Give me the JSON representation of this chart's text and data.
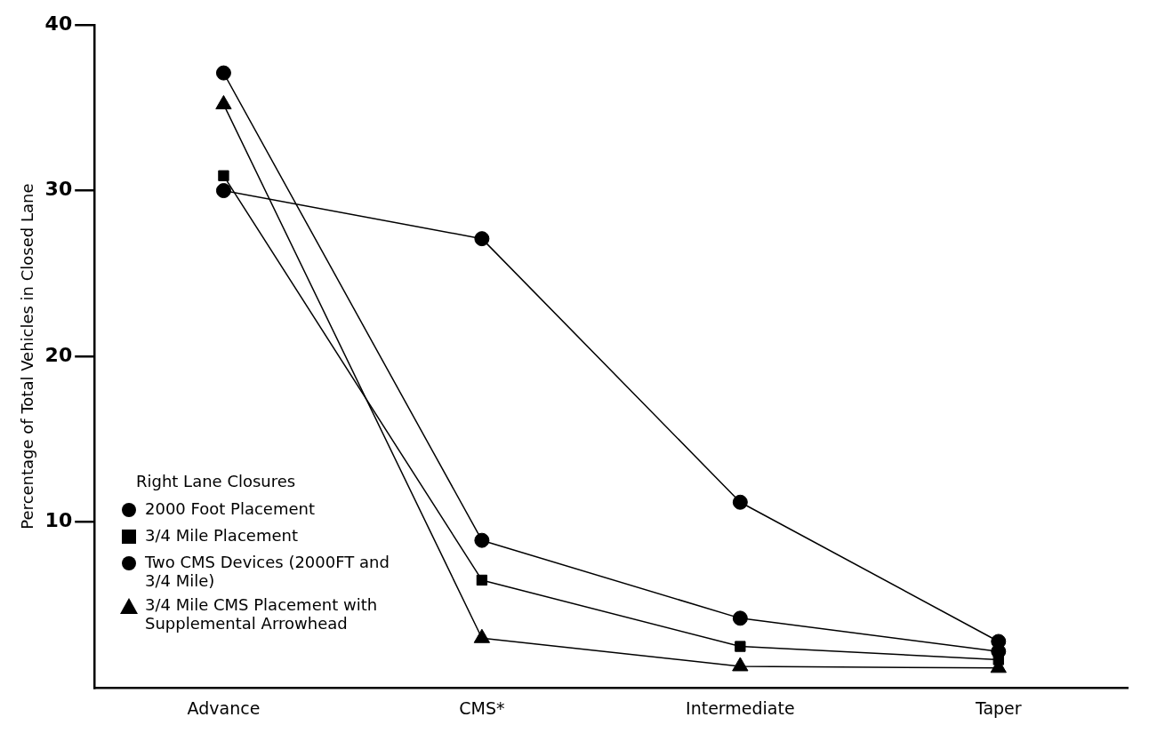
{
  "chart_data": {
    "type": "line",
    "ylabel": "Percentage of Total Vehicles in Closed Lane",
    "legend_title": "Right Lane Closures",
    "legend": "bottom left",
    "grid": false,
    "categories": [
      "Advance",
      "CMS*",
      "Intermediate",
      "Taper"
    ],
    "ylim": [
      0,
      40
    ],
    "yticks": [
      10,
      20,
      30,
      40
    ],
    "series": [
      {
        "name": "2000 Foot Placement",
        "color": "#000000",
        "marker": "circle",
        "values": [
          30.0,
          27.1,
          11.2,
          2.8
        ]
      },
      {
        "name": "3/4 Mile Placement",
        "color": "#000000",
        "marker": "square",
        "values": [
          30.9,
          6.5,
          2.5,
          1.7
        ]
      },
      {
        "name": "Two CMS Devices (2000FT and 3/4 Mile)",
        "color": "#000000",
        "marker": "circle",
        "values": [
          37.1,
          8.9,
          4.2,
          2.2
        ]
      },
      {
        "name": "3/4 Mile CMS Placement with Supplemental Arrowhead",
        "color": "#000000",
        "marker": "triangle",
        "values": [
          35.2,
          3.0,
          1.3,
          1.2
        ]
      }
    ]
  }
}
